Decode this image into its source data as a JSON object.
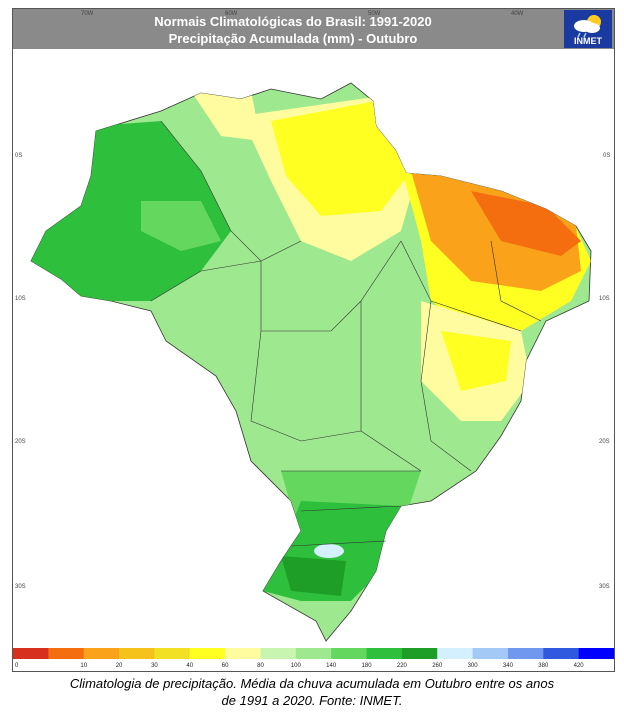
{
  "header": {
    "title_line1": "Normais Climatológicas do Brasil: 1991-2020",
    "title_line2": "Precipitação Acumulada (mm) - Outubro",
    "logo_text": "INMET"
  },
  "axes": {
    "top_ticks": [
      "70W",
      "60W",
      "50W",
      "40W"
    ],
    "left_ticks": [
      "0S",
      "10S",
      "20S",
      "30S"
    ],
    "right_ticks": [
      "0S",
      "10S",
      "20S",
      "30S"
    ]
  },
  "legend": {
    "labels": [
      "0",
      "10",
      "20",
      "30",
      "40",
      "60",
      "80",
      "100",
      "140",
      "180",
      "220",
      "260",
      "300",
      "340",
      "380",
      "420"
    ],
    "colors": [
      "#d7301f",
      "#f46d0e",
      "#f9a21a",
      "#f5c21b",
      "#f2e024",
      "#ffff22",
      "#fffca0",
      "#c8f5b0",
      "#9ee88f",
      "#64d75f",
      "#2ebf3c",
      "#1e9e27",
      "#d4f0ff",
      "#a3c9f7",
      "#6f98ee",
      "#2f5ae0",
      "#0000ff"
    ]
  },
  "caption": {
    "line1": "Climatologia de precipitação. Média da chuva acumulada em Outubro entre os anos",
    "line2": "de 1991 a 2020. Fonte: INMET."
  }
}
